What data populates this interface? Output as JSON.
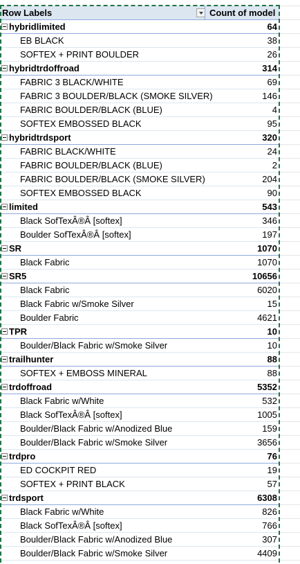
{
  "pivot": {
    "header": {
      "row_labels": "Row Labels",
      "count_label": "Count of model"
    },
    "groups": [
      {
        "name": "hybridlimited",
        "total": "64",
        "items": [
          {
            "label": "EB BLACK",
            "value": "38"
          },
          {
            "label": "SOFTEX + PRINT BOULDER",
            "value": "26"
          }
        ]
      },
      {
        "name": "hybridtrdoffroad",
        "total": "314",
        "items": [
          {
            "label": "FABRIC 3 BLACK/WHITE",
            "value": "69"
          },
          {
            "label": "FABRIC 3 BOULDER/BLACK (SMOKE SILVER)",
            "value": "146"
          },
          {
            "label": "FABRIC BOULDER/BLACK (BLUE)",
            "value": "4"
          },
          {
            "label": "SOFTEX EMBOSSED BLACK",
            "value": "95"
          }
        ]
      },
      {
        "name": "hybridtrdsport",
        "total": "320",
        "items": [
          {
            "label": "FABRIC BLACK/WHITE",
            "value": "24"
          },
          {
            "label": "FABRIC BOULDER/BLACK (BLUE)",
            "value": "2"
          },
          {
            "label": "FABRIC BOULDER/BLACK (SMOKE SILVER)",
            "value": "204"
          },
          {
            "label": "SOFTEX EMBOSSED BLACK",
            "value": "90"
          }
        ]
      },
      {
        "name": "limited",
        "total": "543",
        "items": [
          {
            "label": "Black SofTexÂ®Â [softex]",
            "value": "346"
          },
          {
            "label": "Boulder SofTexÂ®Â [softex]",
            "value": "197"
          }
        ]
      },
      {
        "name": "SR",
        "total": "1070",
        "items": [
          {
            "label": "Black Fabric",
            "value": "1070"
          }
        ]
      },
      {
        "name": "SR5",
        "total": "10656",
        "items": [
          {
            "label": "Black Fabric",
            "value": "6020"
          },
          {
            "label": "Black Fabric w/Smoke Silver",
            "value": "15"
          },
          {
            "label": "Boulder Fabric",
            "value": "4621"
          }
        ]
      },
      {
        "name": "TPR",
        "total": "10",
        "items": [
          {
            "label": "Boulder/Black Fabric w/Smoke Silver",
            "value": "10"
          }
        ]
      },
      {
        "name": "trailhunter",
        "total": "88",
        "items": [
          {
            "label": "SOFTEX + EMBOSS MINERAL",
            "value": "88"
          }
        ]
      },
      {
        "name": "trdoffroad",
        "total": "5352",
        "items": [
          {
            "label": "Black Fabric w/White",
            "value": "532"
          },
          {
            "label": "Black SofTexÂ®Â [softex]",
            "value": "1005"
          },
          {
            "label": "Boulder/Black Fabric w/Anodized Blue",
            "value": "159"
          },
          {
            "label": "Boulder/Black Fabric w/Smoke Silver",
            "value": "3656"
          }
        ]
      },
      {
        "name": "trdpro",
        "total": "76",
        "items": [
          {
            "label": "ED COCKPIT RED",
            "value": "19"
          },
          {
            "label": "SOFTEX + PRINT BLACK",
            "value": "57"
          }
        ]
      },
      {
        "name": "trdsport",
        "total": "6308",
        "items": [
          {
            "label": "Black Fabric w/White",
            "value": "826"
          },
          {
            "label": "Black SofTexÂ®Â [softex]",
            "value": "766"
          },
          {
            "label": "Boulder/Black Fabric w/Anodized Blue",
            "value": "307"
          },
          {
            "label": "Boulder/Black Fabric w/Smoke Silver",
            "value": "4409"
          }
        ]
      }
    ]
  },
  "colors": {
    "header_bg": "#dce6f1",
    "group_border": "#8ea9db",
    "copy_marquee": "#217346"
  }
}
